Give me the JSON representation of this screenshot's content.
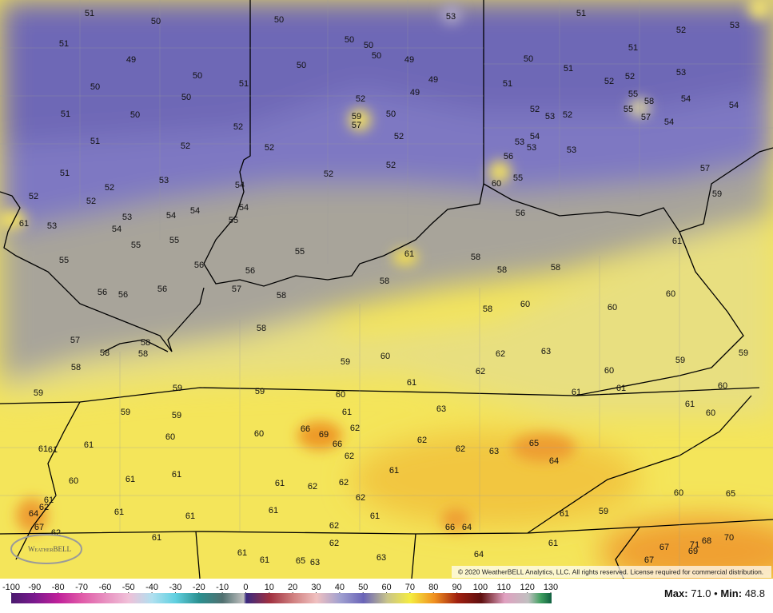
{
  "map": {
    "labels": [
      51,
      50,
      51,
      49,
      50,
      50,
      50,
      51,
      51,
      50,
      52,
      51,
      52,
      51,
      52,
      53,
      52,
      52,
      61,
      53,
      53,
      54,
      54,
      54,
      55,
      54,
      54,
      55,
      55,
      55,
      56,
      56,
      57,
      56,
      56,
      56,
      58,
      50,
      53,
      50,
      50,
      50,
      49,
      50,
      49,
      49,
      52,
      59,
      57,
      50,
      52,
      52,
      52,
      52,
      55,
      61,
      58,
      58,
      58,
      58,
      60,
      55,
      56,
      56,
      53,
      54,
      53,
      52,
      53,
      52,
      53,
      51,
      50,
      51,
      51,
      52,
      52,
      51,
      52,
      53,
      53,
      55,
      58,
      55,
      57,
      54,
      54,
      54,
      57,
      59,
      61,
      58,
      57,
      58,
      58,
      58,
      58,
      59,
      60,
      58,
      60,
      60,
      60,
      62,
      63,
      62,
      60,
      59,
      59,
      61,
      59,
      59,
      60,
      59,
      61,
      61,
      60,
      61,
      60,
      59,
      59,
      60,
      61,
      63,
      66,
      69,
      62,
      66,
      60,
      62,
      62,
      63,
      65,
      64,
      61,
      61,
      61,
      62,
      61,
      60,
      61,
      61,
      61,
      62,
      62,
      62,
      60,
      65,
      61,
      62,
      64,
      61,
      61,
      61,
      61,
      61,
      59,
      67,
      62,
      62,
      66,
      64,
      61,
      62,
      61,
      70,
      68,
      71,
      69,
      67,
      61,
      61,
      65,
      63,
      63,
      64,
      67
    ],
    "colorbar": {
      "ticks": [
        -100,
        -90,
        -80,
        -70,
        -60,
        -50,
        -40,
        -30,
        -20,
        -10,
        0,
        10,
        20,
        30,
        40,
        50,
        60,
        70,
        80,
        90,
        100,
        110,
        120,
        130
      ]
    },
    "footer": {
      "max_label": "Max:",
      "max_value": "71.0",
      "separator": "•",
      "min_label": "Min:",
      "min_value": "48.8"
    },
    "copyright": "© 2020 WeatherBELL Analytics, LLC. All rights reserved. License required for commercial distribution.",
    "logo": "WeatherBELL"
  }
}
